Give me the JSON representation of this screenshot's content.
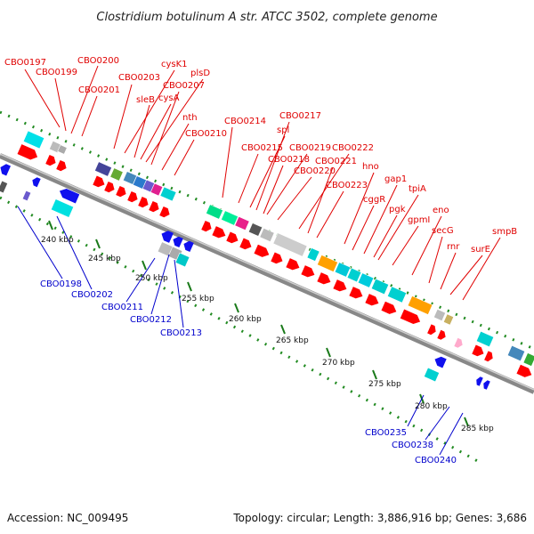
{
  "title": "Clostridium botulinum A str. ATCC 3502, complete genome",
  "footer": {
    "accession": "Accession: NC_009495",
    "topology": "Topology: circular; Length: 3,886,916 bp; Genes: 3,686"
  },
  "colors": {
    "forward_label": "#e00000",
    "reverse_label": "#0000cc",
    "forward_strand": "#ff0000",
    "reverse_strand": "#1010ee",
    "backbone": "#888888",
    "scale_dots": "#228b22"
  },
  "forward_labels": [
    "CBO0197",
    "CBO0199",
    "CBO0200",
    "CBO0201",
    "CBO0203",
    "cysK1",
    "sleB",
    "plsD",
    "cysA",
    "CBO0207",
    "nth",
    "CBO0210",
    "CBO0214",
    "CBO0217",
    "spl",
    "CBO0215",
    "CBO0219",
    "CBO0222",
    "CBO0218",
    "CBO0221",
    "CBO0220",
    "hno",
    "CBO0223",
    "gap1",
    "cggR",
    "tpiA",
    "pgk",
    "eno",
    "gpmI",
    "secG",
    "smpB",
    "rnr",
    "surE"
  ],
  "reverse_labels": [
    "CBO0198",
    "CBO0202",
    "CBO0211",
    "CBO0212",
    "CBO0213",
    "CBO0235",
    "CBO0238",
    "CBO0240"
  ],
  "scale_labels": [
    "240 kbp",
    "245 kbp",
    "250 kbp",
    "255 kbp",
    "260 kbp",
    "265 kbp",
    "270 kbp",
    "275 kbp",
    "280 kbp",
    "285 kbp"
  ]
}
